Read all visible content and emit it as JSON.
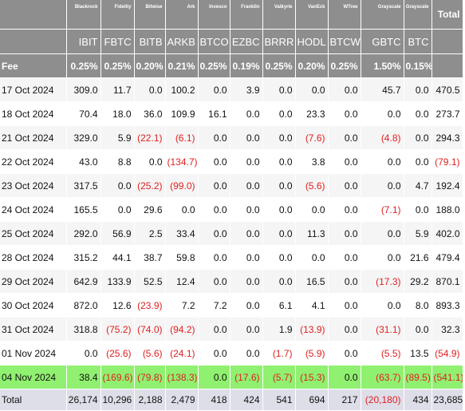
{
  "table": {
    "corner": "",
    "total_header": "Total",
    "issuers": [
      "Blackrock",
      "Fidelity",
      "Bitwise",
      "Ark",
      "Invesco",
      "Franklin",
      "Valkyrie",
      "VanEck",
      "WTree",
      "Grayscale",
      "Grayscale"
    ],
    "tickers": [
      "IBIT",
      "FBTC",
      "BITB",
      "ARKB",
      "BTCO",
      "EZBC",
      "BRRR",
      "HODL",
      "BTCW",
      "GBTC",
      "BTC"
    ],
    "fee_label": "Fee",
    "fees": [
      "0.25%",
      "0.25%",
      "0.20%",
      "0.21%",
      "0.25%",
      "0.19%",
      "0.25%",
      "0.20%",
      "0.25%",
      "1.50%",
      "0.15%"
    ],
    "rows": [
      {
        "date": "17 Oct 2024",
        "values": [
          "309.0",
          "11.7",
          "0.0",
          "100.2",
          "0.0",
          "3.9",
          "0.0",
          "0.0",
          "0.0",
          "45.7",
          "0.0"
        ],
        "total": "470.5"
      },
      {
        "date": "18 Oct 2024",
        "values": [
          "70.4",
          "18.0",
          "36.0",
          "109.9",
          "16.1",
          "0.0",
          "0.0",
          "23.3",
          "0.0",
          "0.0",
          "0.0"
        ],
        "total": "273.7"
      },
      {
        "date": "21 Oct 2024",
        "values": [
          "329.0",
          "5.9",
          "(22.1)",
          "(6.1)",
          "0.0",
          "0.0",
          "0.0",
          "(7.6)",
          "0.0",
          "(4.8)",
          "0.0"
        ],
        "total": "294.3"
      },
      {
        "date": "22 Oct 2024",
        "values": [
          "43.0",
          "8.8",
          "0.0",
          "(134.7)",
          "0.0",
          "0.0",
          "0.0",
          "3.8",
          "0.0",
          "0.0",
          "0.0"
        ],
        "total": "(79.1)"
      },
      {
        "date": "23 Oct 2024",
        "values": [
          "317.5",
          "0.0",
          "(25.2)",
          "(99.0)",
          "0.0",
          "0.0",
          "0.0",
          "(5.6)",
          "0.0",
          "0.0",
          "4.7"
        ],
        "total": "192.4"
      },
      {
        "date": "24 Oct 2024",
        "values": [
          "165.5",
          "0.0",
          "29.6",
          "0.0",
          "0.0",
          "0.0",
          "0.0",
          "0.0",
          "0.0",
          "(7.1)",
          "0.0"
        ],
        "total": "188.0"
      },
      {
        "date": "25 Oct 2024",
        "values": [
          "292.0",
          "56.9",
          "2.5",
          "33.4",
          "0.0",
          "0.0",
          "0.0",
          "11.3",
          "0.0",
          "0.0",
          "5.9"
        ],
        "total": "402.0"
      },
      {
        "date": "28 Oct 2024",
        "values": [
          "315.2",
          "44.1",
          "38.7",
          "59.8",
          "0.0",
          "0.0",
          "0.0",
          "0.0",
          "0.0",
          "0.0",
          "21.6"
        ],
        "total": "479.4"
      },
      {
        "date": "29 Oct 2024",
        "values": [
          "642.9",
          "133.9",
          "52.5",
          "12.4",
          "0.0",
          "0.0",
          "0.0",
          "16.5",
          "0.0",
          "(17.3)",
          "29.2"
        ],
        "total": "870.1"
      },
      {
        "date": "30 Oct 2024",
        "values": [
          "872.0",
          "12.6",
          "(23.9)",
          "7.2",
          "7.2",
          "0.0",
          "6.1",
          "4.1",
          "0.0",
          "0.0",
          "8.0"
        ],
        "total": "893.3"
      },
      {
        "date": "31 Oct 2024",
        "values": [
          "318.8",
          "(75.2)",
          "(74.0)",
          "(94.2)",
          "0.0",
          "0.0",
          "1.9",
          "(13.9)",
          "0.0",
          "(31.1)",
          "0.0"
        ],
        "total": "32.3"
      },
      {
        "date": "01 Nov 2024",
        "values": [
          "0.0",
          "(25.6)",
          "(5.6)",
          "(24.1)",
          "0.0",
          "0.0",
          "(1.7)",
          "(5.9)",
          "0.0",
          "(5.5)",
          "13.5"
        ],
        "total": "(54.9)"
      },
      {
        "date": "04 Nov 2024",
        "values": [
          "38.4",
          "(169.6)",
          "(79.8)",
          "(138.3)",
          "0.0",
          "(17.6)",
          "(5.7)",
          "(15.3)",
          "0.0",
          "(63.7)",
          "(89.5)"
        ],
        "total": "(541.1)",
        "highlight": true
      }
    ],
    "total_label": "Total",
    "totals": [
      "26,174",
      "10,296",
      "2,188",
      "2,479",
      "418",
      "424",
      "541",
      "694",
      "217",
      "(20,180)",
      "434"
    ],
    "grand_total": "23,685",
    "colors": {
      "header_bg": "#8e8e8e",
      "highlight_row": "#90f070",
      "negative_text": "#e02020",
      "total_row_bg": "#dedee8"
    }
  }
}
